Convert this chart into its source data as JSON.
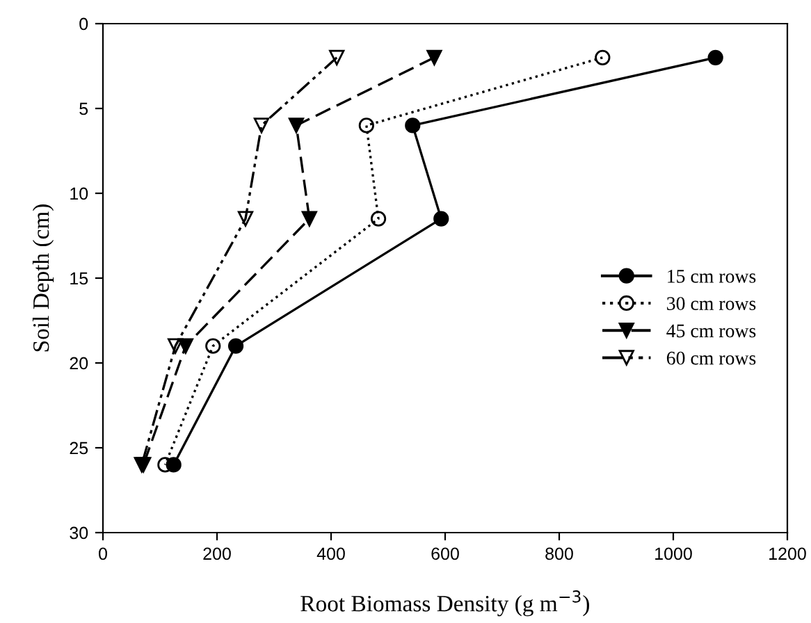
{
  "chart_data": {
    "type": "line",
    "xlabel": "Root Biomass Density (g m$^{−3}$)",
    "ylabel": "Soil Depth (cm)",
    "xlim": [
      0,
      1200
    ],
    "xticks": [
      0,
      200,
      400,
      600,
      800,
      1000,
      1200
    ],
    "ylim": [
      30,
      0
    ],
    "yticks": [
      0,
      5,
      10,
      15,
      20,
      25,
      30
    ],
    "grid": false,
    "legend": "right",
    "series": [
      {
        "name": "15 cm rows",
        "color": "#000000",
        "marker": "circle",
        "line_style": "solid",
        "x": [
          1074,
          543,
          593,
          233,
          124
        ],
        "values": [
          2,
          6,
          11.5,
          19,
          26
        ]
      },
      {
        "name": "30 cm rows",
        "color": "#000000",
        "marker": "circle",
        "line_style": "dotted",
        "x": [
          876,
          462,
          483,
          193,
          109
        ],
        "values": [
          2,
          6,
          11.5,
          19,
          26
        ]
      },
      {
        "name": "45 cm rows",
        "color": "#000000",
        "marker": "triangle",
        "line_style": "dashed",
        "x": [
          581,
          339,
          362,
          145,
          71
        ],
        "values": [
          2,
          6,
          11.5,
          19,
          26
        ]
      },
      {
        "name": "60 cm rows",
        "color": "#000000",
        "marker": "triangle",
        "line_style": "dashdotdot",
        "x": [
          410,
          278,
          250,
          127,
          68
        ],
        "values": [
          2,
          6,
          11.5,
          19,
          26
        ]
      }
    ]
  }
}
